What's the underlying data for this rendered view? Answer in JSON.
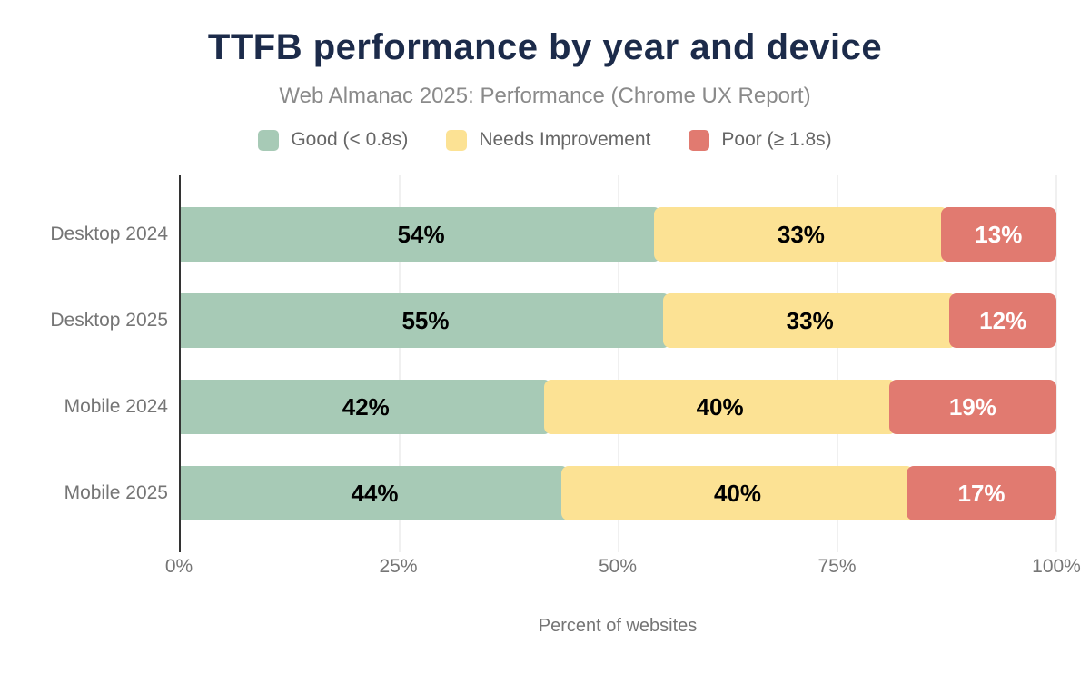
{
  "header": {
    "title": "TTFB performance by year and device",
    "subtitle": "Web Almanac 2025: Performance (Chrome UX Report)"
  },
  "colors": {
    "title_text": "#1c2b4a",
    "subtitle_text": "#8a8a8a",
    "axis_text": "#757575",
    "legend_text": "#666666",
    "axis_line": "#333333",
    "gridline": "#f0f0f0",
    "good": "#a7cab6",
    "needs_improvement": "#fce294",
    "poor": "#e17a70"
  },
  "chart_data": {
    "type": "bar",
    "orientation": "horizontal",
    "stacked": true,
    "title": "TTFB performance by year and device",
    "subtitle": "Web Almanac 2025: Performance (Chrome UX Report)",
    "xlabel": "Percent of websites",
    "ylabel": "",
    "xlim": [
      0,
      100
    ],
    "x_ticks": [
      {
        "label": "0%",
        "value": 0
      },
      {
        "label": "25%",
        "value": 25
      },
      {
        "label": "50%",
        "value": 50
      },
      {
        "label": "75%",
        "value": 75
      },
      {
        "label": "100%",
        "value": 100
      }
    ],
    "grid": "vertical",
    "legend_position": "top",
    "categories": [
      "Desktop 2024",
      "Desktop 2025",
      "Mobile 2024",
      "Mobile 2025"
    ],
    "series": [
      {
        "name": "Good (< 0.8s)",
        "color": "#a7cab6",
        "value_label_color": "#000000",
        "values": [
          54,
          55,
          42,
          44
        ]
      },
      {
        "name": "Needs Improvement",
        "color": "#fce294",
        "value_label_color": "#000000",
        "values": [
          33,
          33,
          40,
          40
        ]
      },
      {
        "name": "Poor (≥ 1.8s)",
        "color": "#e17a70",
        "value_label_color": "#ffffff",
        "values": [
          13,
          12,
          19,
          17
        ]
      }
    ],
    "value_suffix": "%"
  }
}
